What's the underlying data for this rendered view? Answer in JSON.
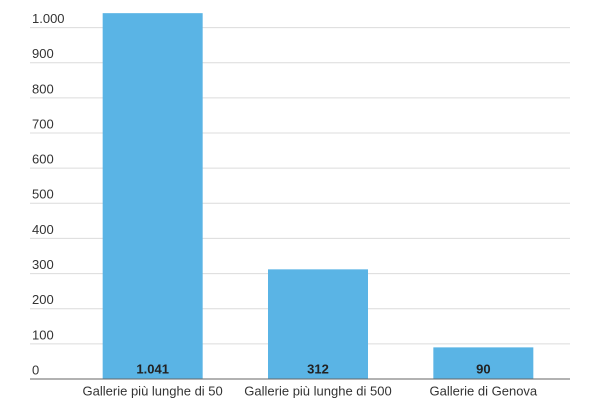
{
  "chart_data": {
    "type": "bar",
    "categories": [
      "Gallerie più lunghe di 50",
      "Gallerie più lunghe di 500",
      "Gallerie di Genova"
    ],
    "values": [
      1041,
      312,
      90
    ],
    "value_labels": [
      "1.041",
      "312",
      "90"
    ],
    "color": "#5ab4e5",
    "ylim": [
      0,
      1050
    ],
    "yticks": [
      0,
      100,
      200,
      300,
      400,
      500,
      600,
      700,
      800,
      900,
      {
        "value": 1000,
        "label": "1.000"
      }
    ],
    "grid": true
  }
}
